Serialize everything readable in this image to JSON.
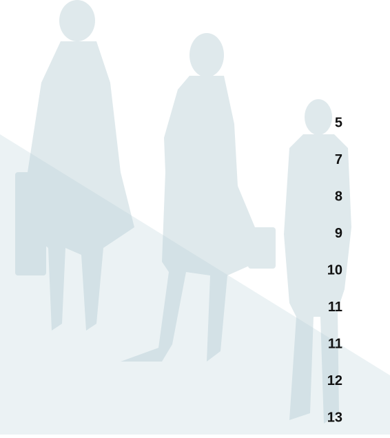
{
  "page_numbers": [
    5,
    7,
    8,
    9,
    10,
    11,
    11,
    12,
    13
  ]
}
